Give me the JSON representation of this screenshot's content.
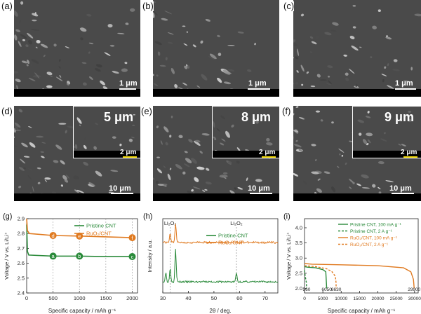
{
  "panels": {
    "a": {
      "label": "(a)",
      "scale": "1 μm"
    },
    "b": {
      "label": "(b)",
      "scale": "1 μm"
    },
    "c": {
      "label": "(c)",
      "scale": "1 μm"
    },
    "d": {
      "label": "(d)",
      "scale": "10 μm",
      "size": "5 μm",
      "inset_scale": "2 μm"
    },
    "e": {
      "label": "(e)",
      "scale": "10 μm",
      "size": "8 μm",
      "inset_scale": "2 μm"
    },
    "f": {
      "label": "(f)",
      "scale": "10 μm",
      "size": "9 μm",
      "inset_scale": "2 μm"
    }
  },
  "colors": {
    "green": "#2a8a3a",
    "orange": "#e07a20",
    "scalebar": "#000000",
    "inset_bar": "#e8d000"
  },
  "chart_data": [
    {
      "panel": "(g)",
      "type": "line",
      "xlabel": "Specific capacity / mAh g⁻¹",
      "ylabel": "Voltage / V vs. Li/Li⁺",
      "xlim": [
        0,
        2100
      ],
      "ylim": [
        2.4,
        2.9
      ],
      "xticks": [
        "0",
        "500",
        "1000",
        "1500",
        "2000"
      ],
      "yticks": [
        "2.4",
        "2.5",
        "2.6",
        "2.7",
        "2.8",
        "2.9"
      ],
      "series": [
        {
          "name": "Pristine CNT",
          "color": "#2a8a3a",
          "points": [
            [
              0,
              2.86
            ],
            [
              15,
              2.68
            ],
            [
              40,
              2.655
            ],
            [
              500,
              2.648
            ],
            [
              1000,
              2.648
            ],
            [
              1500,
              2.645
            ],
            [
              2000,
              2.645
            ]
          ]
        },
        {
          "name": "RuO₂/CNT",
          "color": "#e07a20",
          "points": [
            [
              0,
              2.9
            ],
            [
              15,
              2.82
            ],
            [
              50,
              2.8
            ],
            [
              500,
              2.787
            ],
            [
              1000,
              2.783
            ],
            [
              1500,
              2.778
            ],
            [
              2000,
              2.772
            ]
          ]
        }
      ],
      "markers": [
        {
          "text": "a",
          "x": 500,
          "y": 2.648,
          "series": "Pristine CNT"
        },
        {
          "text": "b",
          "x": 1000,
          "y": 2.648,
          "series": "Pristine CNT"
        },
        {
          "text": "c",
          "x": 2000,
          "y": 2.645,
          "series": "Pristine CNT"
        },
        {
          "text": "d",
          "x": 500,
          "y": 2.787,
          "series": "RuO₂/CNT"
        },
        {
          "text": "e",
          "x": 1000,
          "y": 2.783,
          "series": "RuO₂/CNT"
        },
        {
          "text": "f",
          "x": 2000,
          "y": 2.772,
          "series": "RuO₂/CNT"
        }
      ],
      "legend": "top-right"
    },
    {
      "panel": "(h)",
      "type": "line",
      "xlabel": "2θ / deg.",
      "ylabel": "Intensity / a.u.",
      "xlim": [
        30,
        75
      ],
      "xticks": [
        "30",
        "40",
        "50",
        "60",
        "70"
      ],
      "annotations": [
        {
          "text": "Li₂O₂",
          "x": 32.9
        },
        {
          "text": "Li₂O₂",
          "x": 58.8
        }
      ],
      "series": [
        {
          "name": "Pristine CNT",
          "color": "#2a8a3a",
          "baseline": 0.15,
          "peaks": [
            [
              31.2,
              0.12
            ],
            [
              32.9,
              0.18
            ],
            [
              35.0,
              0.45
            ],
            [
              58.8,
              0.12
            ]
          ]
        },
        {
          "name": "RuO₂/CNT",
          "color": "#e07a20",
          "baseline": 0.68,
          "peaks": [
            [
              32.9,
              0.12
            ],
            [
              35.0,
              0.26
            ]
          ]
        }
      ],
      "legend": "top-right"
    },
    {
      "panel": "(i)",
      "type": "line",
      "xlabel": "Specific capacity / mAh g⁻¹",
      "ylabel": "Voltage / V vs. Li/Li⁺",
      "xlim": [
        0,
        31000
      ],
      "ylim": [
        1.85,
        4.3
      ],
      "xticks": [
        "0",
        "5000",
        "10000",
        "15000",
        "20000",
        "25000",
        "30000"
      ],
      "yticks": [
        "2.0",
        "2.5",
        "3.0",
        "3.5",
        "4.0"
      ],
      "series": [
        {
          "name": "Pristine CNT, 100 mA g⁻¹",
          "color": "#2a8a3a",
          "dash": "solid",
          "points": [
            [
              0,
              2.72
            ],
            [
              800,
              2.7
            ],
            [
              3000,
              2.68
            ],
            [
              5000,
              2.62
            ],
            [
              5800,
              2.55
            ],
            [
              6050,
              2.0
            ]
          ]
        },
        {
          "name": "Pristine CNT, 2 A g⁻¹",
          "color": "#2a8a3a",
          "dash": "dashed",
          "points": [
            [
              0,
              2.6
            ],
            [
              200,
              2.4
            ],
            [
              500,
              2.2
            ],
            [
              560,
              2.0
            ]
          ]
        },
        {
          "name": "RuO₂/CNT, 100 mA g⁻¹",
          "color": "#e07a20",
          "dash": "solid",
          "points": [
            [
              0,
              2.82
            ],
            [
              2000,
              2.8
            ],
            [
              10000,
              2.78
            ],
            [
              20000,
              2.75
            ],
            [
              27000,
              2.68
            ],
            [
              29000,
              2.55
            ],
            [
              29700,
              2.3
            ],
            [
              29900,
              2.0
            ]
          ]
        },
        {
          "name": "RuO₂/CNT, 2 A g⁻¹",
          "color": "#e07a20",
          "dash": "dashed",
          "points": [
            [
              0,
              2.75
            ],
            [
              3000,
              2.72
            ],
            [
              6000,
              2.65
            ],
            [
              7500,
              2.55
            ],
            [
              8400,
              2.4
            ],
            [
              8600,
              2.2
            ],
            [
              8630,
              2.0
            ]
          ]
        }
      ],
      "end_labels": [
        {
          "text": "560",
          "x": 560
        },
        {
          "text": "6050",
          "x": 6050
        },
        {
          "text": "8630",
          "x": 8630
        },
        {
          "text": "29900",
          "x": 29900
        }
      ],
      "legend": "top-right"
    }
  ]
}
